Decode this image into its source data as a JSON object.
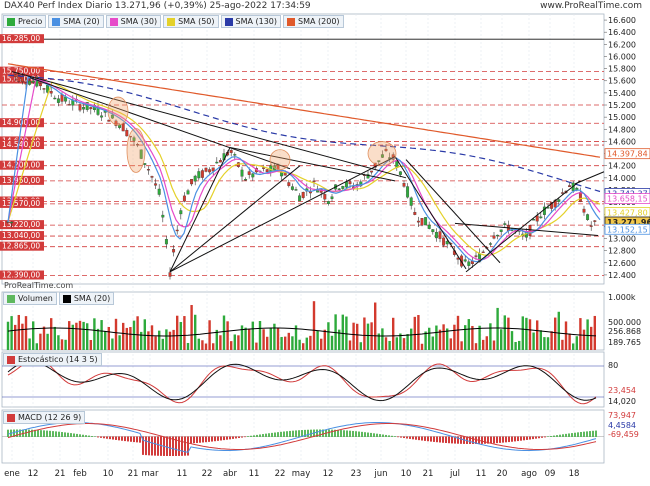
{
  "header": {
    "title": "DAX40 Perf Index Diario 13.271,96 (+0,39%) 25-ago-2022 17:34:59",
    "brand": "www.ProRealTime.com",
    "copyright": "ProRealTime.com"
  },
  "colors": {
    "price_candle_up": "#2eaa3c",
    "price_candle_down": "#d33a2e",
    "sma20": "#4a90e2",
    "sma30": "#e64bc9",
    "sma50": "#e4d12a",
    "sma130": "#2a3aa7",
    "sma200": "#e05a2b",
    "resistance": "#d23b3b",
    "volume_legend": "#5eb85e",
    "stoch_k": "#d23b3b",
    "macd_signal": "#d23b3b",
    "macd_line": "#4a90e2"
  },
  "legend_price": [
    {
      "label": "Precio",
      "icon": "candle-icon",
      "color": "#2eaa3c"
    },
    {
      "label": "SMA (20)",
      "color": "#4a90e2"
    },
    {
      "label": "SMA (30)",
      "color": "#e64bc9"
    },
    {
      "label": "SMA (50)",
      "color": "#e4d12a"
    },
    {
      "label": "SMA (130)",
      "color": "#2a3aa7"
    },
    {
      "label": "SMA (200)",
      "color": "#e05a2b"
    }
  ],
  "legend_volume": [
    {
      "label": "Volumen",
      "color": "#5eb85e"
    },
    {
      "label": "SMA (20)",
      "color": "#000000"
    }
  ],
  "legend_stoch": [
    {
      "label": "Estocástico (14 3 5)",
      "color": "#d23b3b"
    }
  ],
  "legend_macd": [
    {
      "label": "MACD (12 26 9)",
      "color": "#d23b3b"
    }
  ],
  "price_axis": {
    "ticks": [
      "16.600",
      "16.400",
      "16.200",
      "16.000",
      "15.800",
      "15.600",
      "15.400",
      "15.200",
      "15.000",
      "14.800",
      "14.600",
      "14.400",
      "14.200",
      "14.000",
      "13.800",
      "13.600",
      "13.400",
      "13.200",
      "13.000",
      "12.800",
      "12.600",
      "12.400"
    ]
  },
  "right_tags": [
    {
      "value": "14.397,84",
      "color": "#e05a2b"
    },
    {
      "value": "13.742,37",
      "color": "#2a3aa7"
    },
    {
      "value": "13.658,15",
      "color": "#e64bc9"
    },
    {
      "value": "13.427,80",
      "color": "#e4d12a"
    },
    {
      "value": "13.271,96",
      "color": "#222222"
    },
    {
      "value": "13.152,15",
      "color": "#4a90e2"
    }
  ],
  "left_levels": [
    "16.285,00",
    "15.750,00",
    "15.620,00",
    "14.900,00",
    "14.600,00",
    "14.540,00",
    "14.200,00",
    "13.950,00",
    "13.610,00",
    "13.570,00",
    "13.220,00",
    "13.040,00",
    "12.865,00",
    "12.390,00"
  ],
  "volume_axis": [
    "1.000k",
    "500.000",
    "256.868",
    "189.765"
  ],
  "stoch_axis": [
    "80",
    "23,454",
    "14,020"
  ],
  "macd_axis": [
    "73,947",
    "4,4584",
    "-69,459"
  ],
  "x_axis": [
    "ene",
    "12",
    "21",
    "feb",
    "10",
    "21",
    "mar",
    "11",
    "22",
    "abr",
    "11",
    "22",
    "may",
    "12",
    "23",
    "jun",
    "10",
    "21",
    "jul",
    "11",
    "20",
    "ago",
    "09",
    "18"
  ]
}
